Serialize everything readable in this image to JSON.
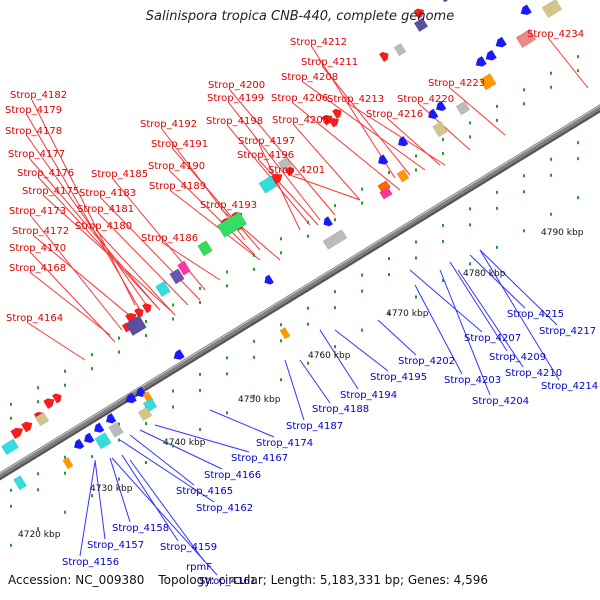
{
  "title": "Salinispora tropica CNB-440, complete genome",
  "footer": {
    "accession": "Accession: NC_009380",
    "topology": "Topology: circular; Length: 5,183,331 bp; Genes: 4,596"
  },
  "colors": {
    "top_strand_label": "#e00000",
    "bottom_strand_label": "#0000cc",
    "backbone": "#808080"
  },
  "ruler": [
    "4720 kbp",
    "4730 kbp",
    "4740 kbp",
    "4750 kbp",
    "4760 kbp",
    "4770 kbp",
    "4780 kbp",
    "4790 kbp"
  ],
  "top_genes": [
    "Strop_4212",
    "Strop_4234",
    "Strop_4211",
    "Strop_4208",
    "Strop_4223",
    "Strop_4200",
    "Strop_4213",
    "Strop_4199",
    "Strop_4206",
    "Strop_4220",
    "Strop_4182",
    "Strop_4216",
    "Strop_4179",
    "Strop_4198",
    "Strop_4205",
    "Strop_4192",
    "Strop_4178",
    "Strop_4197",
    "Strop_4191",
    "Strop_4196",
    "Strop_4177",
    "Strop_4185",
    "Strop_4190",
    "Strop_4201",
    "Strop_4176",
    "Strop_4189",
    "Strop_4175",
    "Strop_4183",
    "Strop_4193",
    "Strop_4173",
    "Strop_4181",
    "Strop_4180",
    "Strop_4172",
    "Strop_4186",
    "Strop_4170",
    "Strop_4168",
    "Strop_4164"
  ],
  "bottom_genes": [
    "Strop_4215",
    "Strop_4217",
    "Strop_4207",
    "Strop_4209",
    "Strop_4202",
    "Strop_4210",
    "Strop_4195",
    "Strop_4203",
    "Strop_4214",
    "Strop_4194",
    "Strop_4204",
    "Strop_4188",
    "Strop_4187",
    "Strop_4174",
    "Strop_4167",
    "Strop_4166",
    "Strop_4165",
    "Strop_4162",
    "Strop_4158",
    "Strop_4157",
    "Strop_4159",
    "Strop_4156",
    "rpmF",
    "Strop_4161"
  ]
}
